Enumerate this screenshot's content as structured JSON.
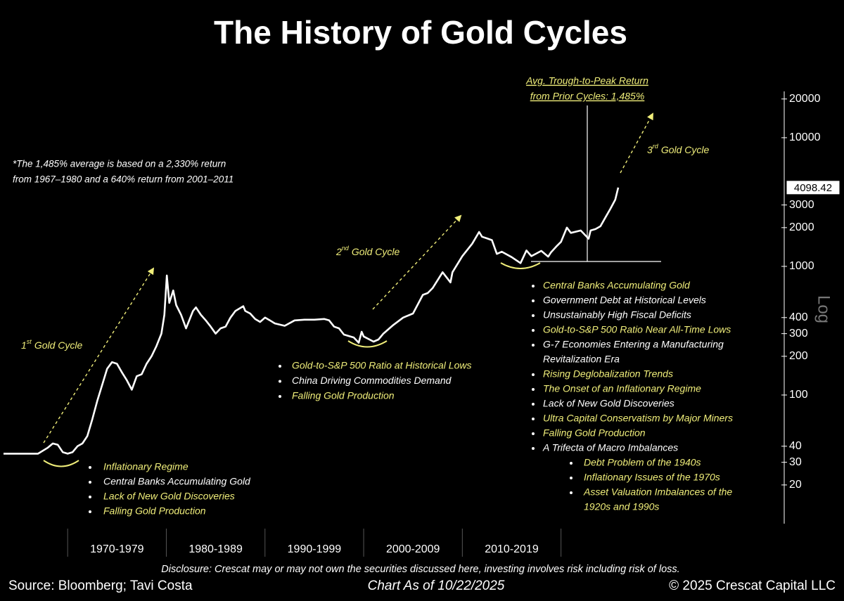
{
  "chart_data": {
    "type": "line",
    "title": "The History of Gold Cycles",
    "log_scale": true,
    "y_axis_label": "Log",
    "series": [
      {
        "color": "#ffffff",
        "x": [
          1963.5,
          1965,
          1967,
          1968,
          1968.5,
          1969,
          1969.5,
          1970,
          1970.5,
          1971,
          1971.5,
          1972,
          1972.5,
          1973,
          1973.5,
          1974,
          1974.5,
          1975,
          1975.5,
          1976,
          1976.5,
          1977,
          1977.5,
          1978,
          1978.5,
          1979,
          1979.5,
          1979.8,
          1980.05,
          1980.3,
          1980.7,
          1981,
          1981.5,
          1982,
          1982.7,
          1983,
          1983.5,
          1984,
          1984.5,
          1985,
          1985.5,
          1986,
          1986.5,
          1987,
          1987.8,
          1988,
          1988.5,
          1989,
          1989.5,
          1990,
          1990.5,
          1991,
          1992,
          1993,
          1994,
          1995,
          1996,
          1996.5,
          1997,
          1997.5,
          1998,
          1999,
          1999.5,
          1999.8,
          2000,
          2001,
          2001.5,
          2002,
          2003,
          2004,
          2005,
          2006,
          2006.5,
          2007,
          2008,
          2008.8,
          2009,
          2010,
          2011,
          2011.7,
          2012,
          2012.5,
          2013,
          2013.5,
          2014,
          2015,
          2015.9,
          2016.5,
          2017,
          2018,
          2018.7,
          2019,
          2019.5,
          2020,
          2020.6,
          2021,
          2022,
          2022.8,
          2023,
          2023.5,
          2024,
          2024.5,
          2025,
          2025.5,
          2025.8
        ],
        "values": [
          35,
          35,
          35,
          39,
          42,
          41,
          36,
          35,
          36,
          40,
          42,
          48,
          65,
          90,
          120,
          160,
          180,
          175,
          150,
          130,
          110,
          140,
          145,
          175,
          200,
          240,
          300,
          420,
          850,
          520,
          650,
          500,
          420,
          330,
          450,
          480,
          420,
          380,
          340,
          300,
          330,
          340,
          400,
          450,
          490,
          450,
          430,
          390,
          370,
          400,
          380,
          360,
          345,
          380,
          385,
          385,
          390,
          380,
          340,
          330,
          295,
          280,
          255,
          310,
          285,
          260,
          270,
          300,
          350,
          400,
          430,
          600,
          620,
          680,
          900,
          750,
          900,
          1200,
          1500,
          1850,
          1700,
          1650,
          1600,
          1250,
          1300,
          1180,
          1060,
          1330,
          1200,
          1320,
          1190,
          1290,
          1420,
          1550,
          2000,
          1820,
          1900,
          1640,
          1900,
          1950,
          2050,
          2400,
          2800,
          3300,
          4098.42
        ]
      }
    ],
    "xlim": [
      1963.5,
      2025.8
    ],
    "xticks": [
      {
        "value": 1970,
        "label": "1970-1979"
      },
      {
        "value": 1980,
        "label": "1980-1989"
      },
      {
        "value": 1990,
        "label": "1990-1999"
      },
      {
        "value": 2000,
        "label": "2000-2009"
      },
      {
        "value": 2010,
        "label": "2010-2019"
      }
    ],
    "ylim": [
      10,
      33000
    ],
    "yticks": [
      20000,
      10000,
      3000,
      2000,
      1000,
      400,
      300,
      200,
      100,
      40,
      30,
      20
    ],
    "annotations": {
      "cycles": [
        {
          "ordinal": "1",
          "suffix": "st",
          "text": "Gold Cycle"
        },
        {
          "ordinal": "2",
          "suffix": "nd",
          "text": "Gold Cycle"
        },
        {
          "ordinal": "3",
          "suffix": "rd",
          "text": "Gold Cycle"
        }
      ],
      "average_return": [
        "Avg. Trough-to-Peak Return",
        "from Prior Cycles: 1,485%"
      ],
      "footnote": [
        "*The 1,485% average is based on a 2,330% return",
        "from 1967–1980 and a 640% return from 2001–2011"
      ],
      "lists": [
        [
          {
            "lines": [
              "Inflationary Regime"
            ],
            "color": "#f0ee7a"
          },
          {
            "lines": [
              "Central Banks Accumulating Gold"
            ],
            "color": "#ffffff"
          },
          {
            "lines": [
              "Lack of New Gold Discoveries"
            ],
            "color": "#f0ee7a"
          },
          {
            "lines": [
              "Falling Gold Production"
            ],
            "color": "#f0ee7a"
          }
        ],
        [
          {
            "lines": [
              "Gold-to-S&P 500 Ratio at Historical Lows"
            ],
            "color": "#f0ee7a"
          },
          {
            "lines": [
              "China Driving Commodities Demand"
            ],
            "color": "#ffffff"
          },
          {
            "lines": [
              "Falling Gold Production"
            ],
            "color": "#f0ee7a"
          }
        ],
        [
          {
            "lines": [
              "Central Banks Accumulating Gold"
            ],
            "color": "#f0ee7a"
          },
          {
            "lines": [
              "Government Debt at Historical Levels"
            ],
            "color": "#ffffff"
          },
          {
            "lines": [
              "Unsustainably High Fiscal Deficits"
            ],
            "color": "#ffffff"
          },
          {
            "lines": [
              "Gold-to-S&P 500 Ratio Near All-Time Lows"
            ],
            "color": "#f0ee7a"
          },
          {
            "lines": [
              "G-7 Economies Entering a Manufacturing",
              "Revitalization Era"
            ],
            "color": "#ffffff"
          },
          {
            "lines": [
              "Rising Deglobalization Trends"
            ],
            "color": "#f0ee7a"
          },
          {
            "lines": [
              "The Onset of an Inflationary Regime"
            ],
            "color": "#f0ee7a"
          },
          {
            "lines": [
              "Lack of New Gold Discoveries"
            ],
            "color": "#ffffff"
          },
          {
            "lines": [
              "Ultra Capital Conservatism by Major Miners"
            ],
            "color": "#f0ee7a"
          },
          {
            "lines": [
              "Falling Gold Production"
            ],
            "color": "#f0ee7a"
          },
          {
            "lines": [
              "A Trifecta of Macro Imbalances"
            ],
            "color": "#ffffff"
          }
        ],
        [
          {
            "lines": [
              "Debt Problem of the 1940s"
            ],
            "color": "#f0ee7a"
          },
          {
            "lines": [
              "Inflationary Issues of the 1970s"
            ],
            "color": "#f0ee7a"
          },
          {
            "lines": [
              "Asset Valuation Imbalances of the",
              "1920s and 1990s"
            ],
            "color": "#f0ee7a"
          }
        ]
      ]
    }
  },
  "footer": {
    "disclosure": "Disclosure: Crescat may or may not own the securities discussed here, investing involves risk including risk of loss.",
    "source": "Source: Bloomberg; Tavi Costa",
    "as_of": "Chart As of 10/22/2025",
    "copyright": "© 2025 Crescat Capital LLC"
  }
}
